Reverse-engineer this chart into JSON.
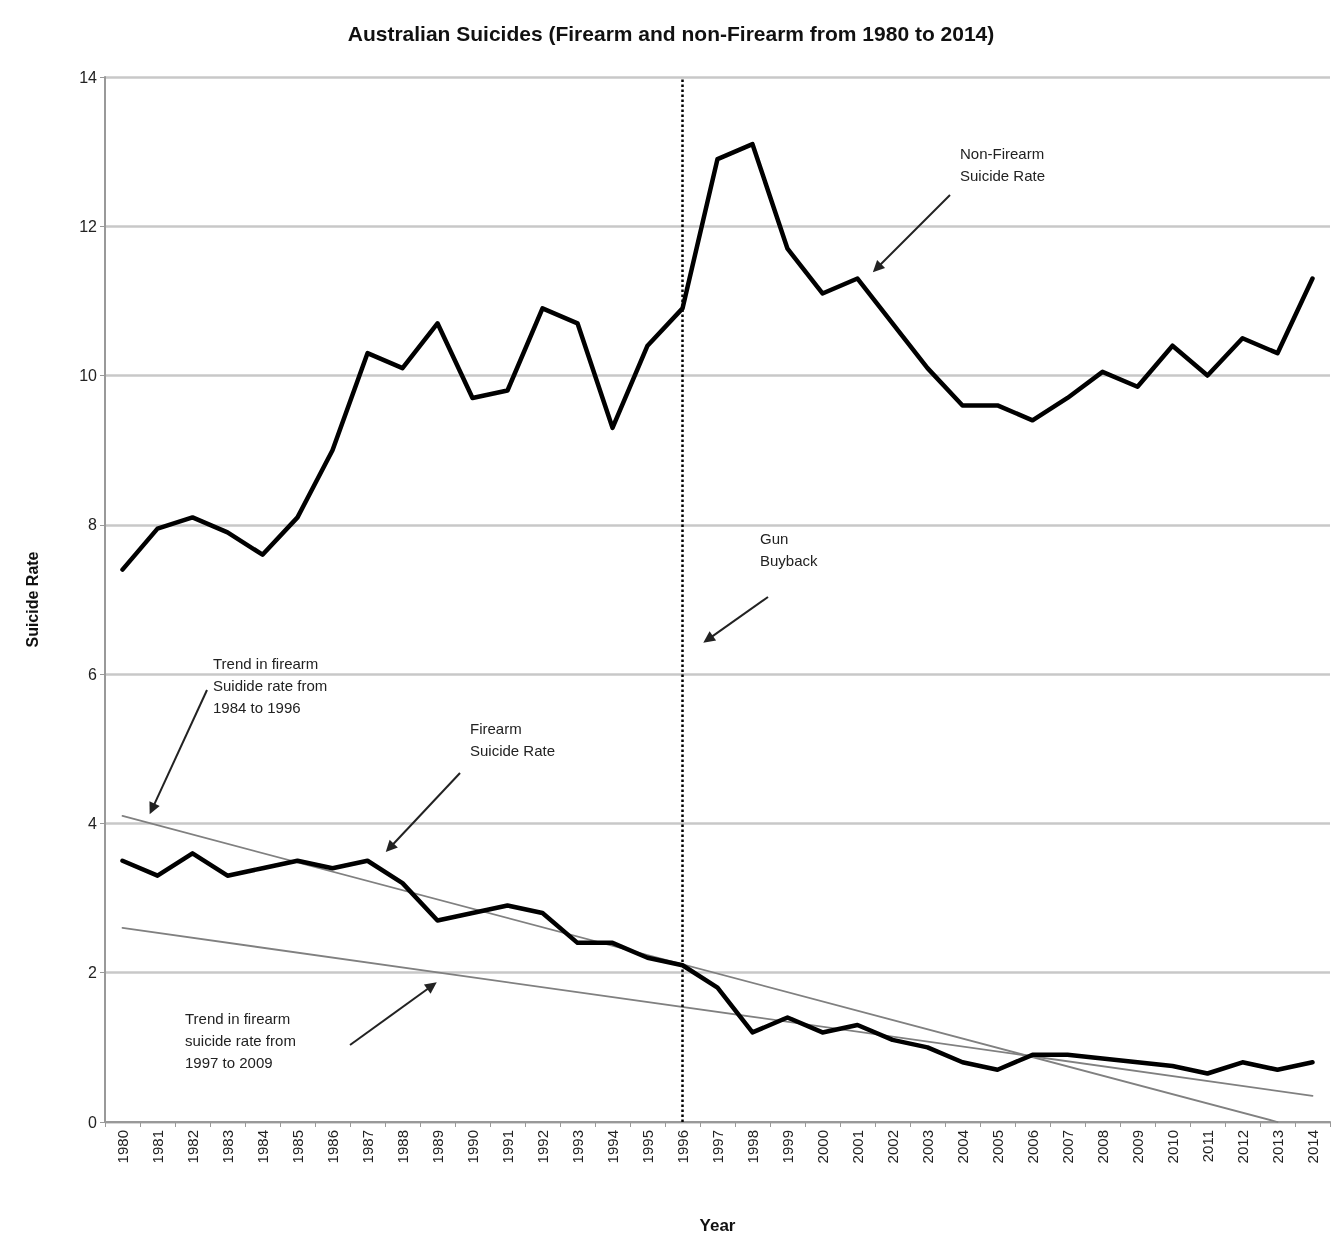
{
  "chart_data": {
    "type": "line",
    "title": "Australian Suicides (Firearm and non-Firearm from 1980 to 2014)",
    "xlabel": "Year",
    "ylabel": "Suicide Rate",
    "categories": [
      "1980",
      "1981",
      "1982",
      "1983",
      "1984",
      "1985",
      "1986",
      "1987",
      "1988",
      "1989",
      "1990",
      "1991",
      "1992",
      "1993",
      "1994",
      "1995",
      "1996",
      "1997",
      "1998",
      "1999",
      "2000",
      "2001",
      "2002",
      "2003",
      "2004",
      "2005",
      "2006",
      "2007",
      "2008",
      "2009",
      "2010",
      "2011",
      "2012",
      "2013",
      "2014"
    ],
    "series": [
      {
        "color": "#000000",
        "values": [
          7.4,
          7.95,
          8.1,
          7.9,
          7.6,
          8.1,
          9.0,
          10.3,
          10.1,
          10.7,
          9.7,
          9.8,
          10.9,
          10.7,
          9.3,
          10.4,
          10.9,
          12.9,
          13.1,
          11.7,
          11.1,
          11.3,
          10.7,
          10.1,
          9.6,
          9.6,
          9.4,
          9.7,
          10.05,
          9.85,
          10.4,
          10.0,
          10.5,
          10.3,
          11.3
        ]
      },
      {
        "color": "#000000",
        "values": [
          3.5,
          3.3,
          3.6,
          3.3,
          3.4,
          3.5,
          3.4,
          3.5,
          3.2,
          2.7,
          2.8,
          2.9,
          2.8,
          2.4,
          2.4,
          2.2,
          2.1,
          1.8,
          1.2,
          1.4,
          1.2,
          1.3,
          1.1,
          1.0,
          0.8,
          0.7,
          0.9,
          0.9,
          0.85,
          0.8,
          0.75,
          0.65,
          0.8,
          0.7,
          0.8
        ]
      },
      {
        "type": "line",
        "color": "#808080",
        "values": [
          4.1,
          null,
          null,
          null,
          null,
          null,
          null,
          null,
          null,
          null,
          null,
          null,
          null,
          null,
          null,
          null,
          null,
          null,
          null,
          null,
          null,
          null,
          null,
          null,
          null,
          null,
          null,
          null,
          null,
          null,
          null,
          null,
          null,
          0.0,
          null
        ]
      },
      {
        "type": "line",
        "color": "#808080",
        "values": [
          2.6,
          null,
          null,
          null,
          null,
          null,
          null,
          null,
          null,
          null,
          null,
          null,
          null,
          null,
          null,
          null,
          null,
          null,
          null,
          null,
          null,
          null,
          null,
          null,
          null,
          null,
          null,
          null,
          null,
          null,
          null,
          null,
          null,
          null,
          0.35
        ]
      }
    ],
    "ylim": [
      0,
      14
    ],
    "yticks": [
      0,
      2,
      4,
      6,
      8,
      10,
      12,
      14
    ],
    "grid": "y",
    "marker": "none",
    "line_style": "solid",
    "ref_lines": [
      {
        "axis": "x",
        "value": "1996",
        "color": "#000000",
        "line_style": "dotted"
      }
    ],
    "annotations": [
      "Non-Firearm\nSuicide Rate",
      "Gun\nBuyback",
      "Firearm\nSuicide Rate",
      "Trend in firearm\nSuidide rate from\n1984 to 1996",
      "Trend in firearm\nsuicide rate from\n1997 to 2009"
    ]
  }
}
